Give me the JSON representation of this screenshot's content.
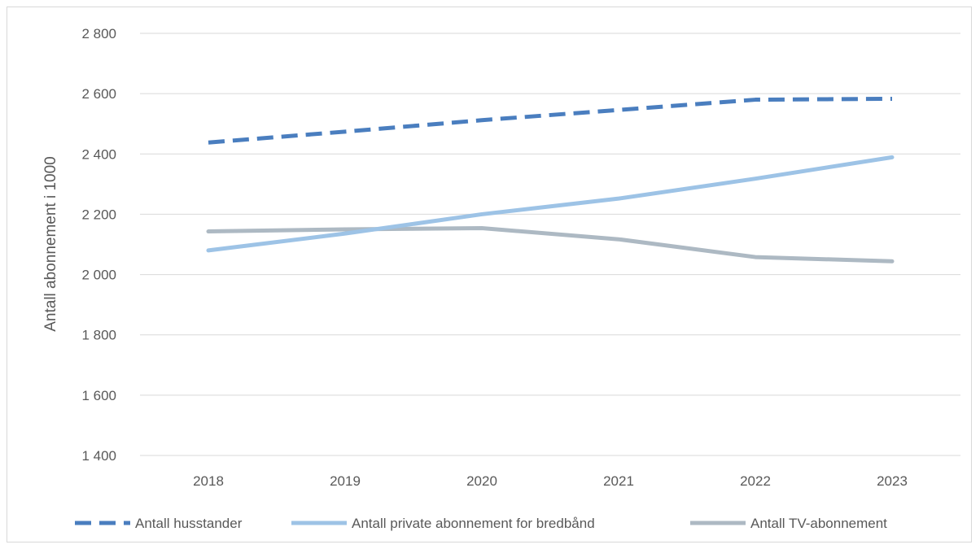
{
  "chart_data": {
    "type": "line",
    "xlabel": "",
    "ylabel": "Antall abonnement i 1000",
    "categories": [
      "2018",
      "2019",
      "2020",
      "2021",
      "2022",
      "2023"
    ],
    "ylim": [
      1400,
      2800
    ],
    "yticks": [
      1400,
      1600,
      1800,
      2000,
      2200,
      2400,
      2600,
      2800
    ],
    "ytick_labels": [
      "1 400",
      "1 600",
      "1 800",
      "2 000",
      "2 200",
      "2 400",
      "2 600",
      "2 800"
    ],
    "grid": true,
    "legend_position": "bottom",
    "series": [
      {
        "name": "Antall husstander",
        "values": [
          2438,
          2474,
          2512,
          2546,
          2580,
          2583
        ],
        "color": "#4a7ebf",
        "style": "dashed"
      },
      {
        "name": "Antall private abonnement for bredbånd",
        "values": [
          2080,
          2136,
          2200,
          2252,
          2318,
          2389
        ],
        "color": "#9dc3e6",
        "style": "solid"
      },
      {
        "name": "Antall TV-abonnement",
        "values": [
          2143,
          2150,
          2154,
          2117,
          2058,
          2044
        ],
        "color": "#adb9c3",
        "style": "solid"
      }
    ]
  }
}
